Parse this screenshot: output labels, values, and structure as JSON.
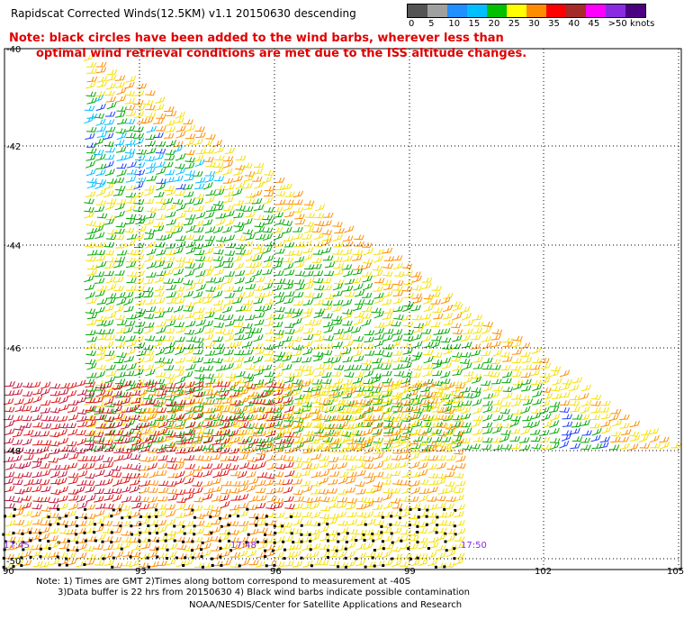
{
  "title": "Rapidscat Corrected Winds(12.5KM) v1.1 20150630 descending",
  "note": {
    "line1": "Note: black circles have been added to the wind barbs, wherever less than",
    "line2": "optimal wind retrieval conditions are met due to the ISS altitude changes."
  },
  "scale": {
    "labels": [
      "0",
      "5",
      "10",
      "15",
      "20",
      "25",
      "30",
      "35",
      "40",
      "45",
      ">50 knots"
    ],
    "colors": [
      "#555555",
      "#a0a0a0",
      "#1e90ff",
      "#00bfff",
      "#00c000",
      "#ffff00",
      "#ff8c00",
      "#ff0000",
      "#a52a2a",
      "#ff00ff",
      "#8a2be2",
      "#4b0082"
    ]
  },
  "axes": {
    "lat_labels": [
      "-40",
      "-42",
      "-44",
      "-46",
      "-48",
      "-50"
    ],
    "lon_labels": [
      "90",
      "93",
      "96",
      "99",
      "102",
      "105"
    ]
  },
  "time_labels": [
    "17:45",
    "17:48",
    "17:50"
  ],
  "footer": {
    "line1": "Note: 1) Times are GMT 2)Times along bottom correspond to measurement at -40S",
    "line2": "3)Data buffer is 22 hrs from 20150630 4) Black wind barbs indicate possible contamination",
    "line3": "NOAA/NESDIS/Center for Satellite Applications and Research"
  }
}
